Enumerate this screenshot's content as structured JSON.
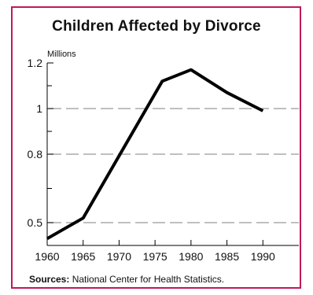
{
  "chart_data": {
    "type": "line",
    "title": "Children Affected by Divorce",
    "ylabel": "Millions",
    "xlabel": "",
    "x": [
      1960,
      1965,
      1976,
      1980,
      1985,
      1990
    ],
    "series": [
      {
        "values": [
          0.43,
          0.52,
          1.12,
          1.17,
          1.07,
          0.99
        ]
      }
    ],
    "x_ticks": [
      "1960",
      "1965",
      "1970",
      "1975",
      "1980",
      "1985",
      "1990"
    ],
    "y_ticks": [
      "0.5",
      "0.8",
      "1",
      "1.2"
    ],
    "xlim": [
      1960,
      1995
    ],
    "y_tick_values": [
      0.5,
      0.8,
      1.0,
      1.2
    ],
    "grid": "horizontal dashed at 0.5, 0.8, 1",
    "line_color": "#000000",
    "frame_color": "#c2185b"
  },
  "source": {
    "label": "Sources:",
    "text": " National Center for Health Statistics."
  }
}
